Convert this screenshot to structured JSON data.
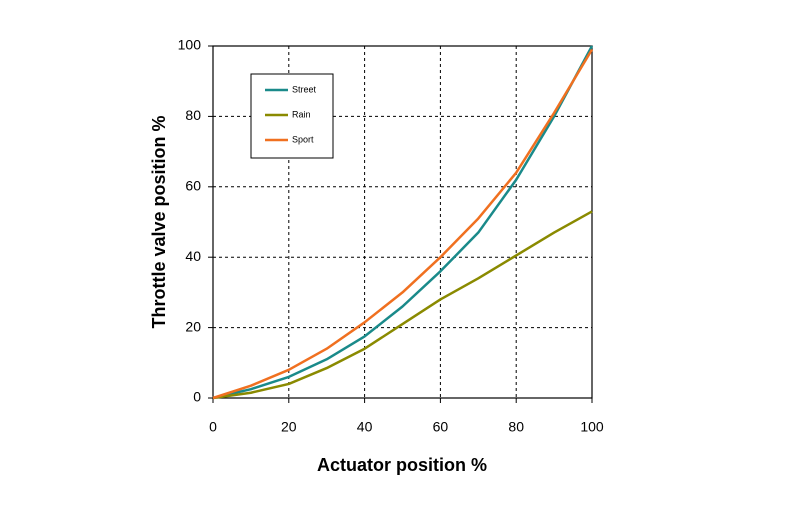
{
  "chart_data": {
    "type": "line",
    "xlabel": "Actuator position  %",
    "ylabel": "Throttle valve  position  %",
    "x": [
      0,
      10,
      20,
      30,
      40,
      50,
      60,
      70,
      80,
      90,
      100
    ],
    "series": [
      {
        "name": "Street",
        "color": "#1a8a8a",
        "values": [
          0,
          2.5,
          6,
          11,
          17.5,
          26,
          36,
          47,
          62,
          80,
          100
        ]
      },
      {
        "name": "Rain",
        "color": "#8a8a00",
        "values": [
          0,
          1.5,
          4,
          8.5,
          14,
          21,
          28,
          34,
          40.5,
          47,
          53
        ]
      },
      {
        "name": "Sport",
        "color": "#f07020",
        "values": [
          0,
          3.5,
          8,
          14,
          21.5,
          30,
          40,
          51,
          64,
          81,
          99
        ]
      }
    ],
    "xlim": [
      0,
      100
    ],
    "xticks": [
      0,
      20,
      40,
      60,
      80,
      100
    ],
    "ylim": [
      0,
      100
    ],
    "yticks": [
      0,
      20,
      40,
      60,
      80,
      100
    ],
    "grid": true
  }
}
